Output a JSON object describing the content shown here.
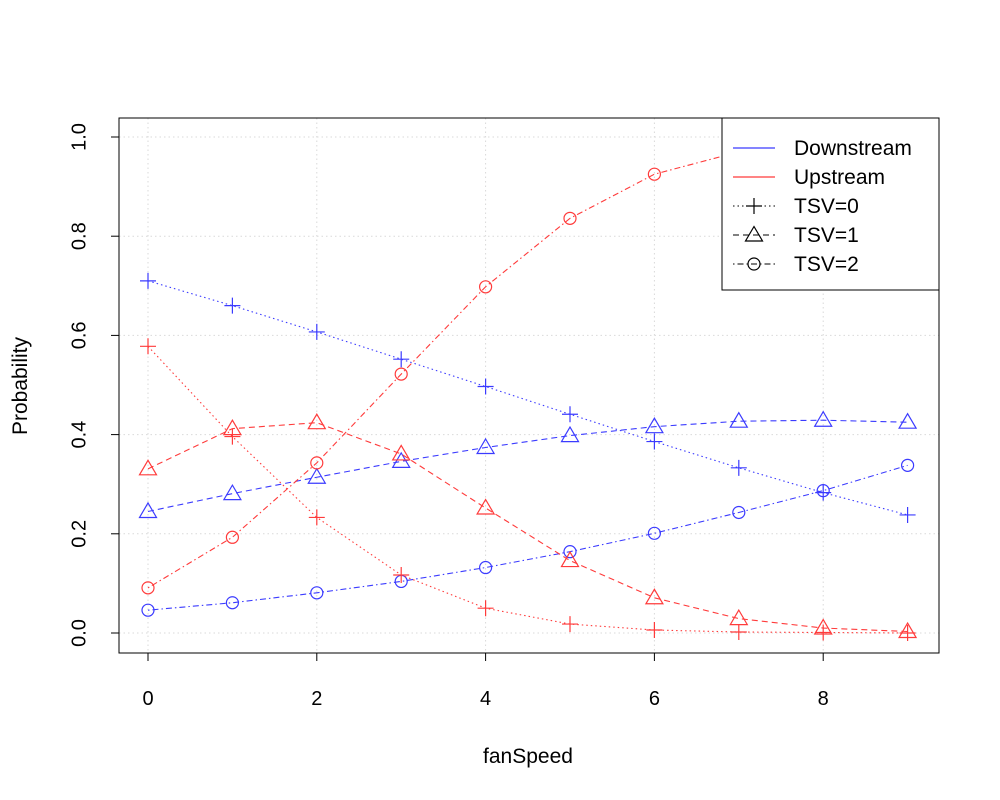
{
  "chart_data": {
    "type": "line",
    "xlabel": "fanSpeed",
    "ylabel": "Probability",
    "xlim": [
      0,
      9
    ],
    "ylim": [
      0,
      1
    ],
    "x_ticks": [
      "0",
      "2",
      "4",
      "6",
      "8"
    ],
    "x_tick_values": [
      0,
      2,
      4,
      6,
      8
    ],
    "y_ticks": [
      "0.0",
      "0.2",
      "0.4",
      "0.6",
      "0.8",
      "1.0"
    ],
    "y_tick_values": [
      0,
      0.2,
      0.4,
      0.6,
      0.8,
      1.0
    ],
    "grid": true,
    "legend_position": "top-right",
    "x": [
      0,
      1,
      2,
      3,
      4,
      5,
      6,
      7,
      8,
      9
    ],
    "colors": {
      "Downstream": "#3b3bff",
      "Upstream": "#ff3b3b"
    },
    "legend": [
      {
        "label": "Downstream",
        "kind": "color",
        "color": "#3b3bff"
      },
      {
        "label": "Upstream",
        "kind": "color",
        "color": "#ff3b3b"
      },
      {
        "label": "TSV=0",
        "kind": "marker",
        "marker": "plus",
        "dash": "dotted"
      },
      {
        "label": "TSV=1",
        "kind": "marker",
        "marker": "triangle",
        "dash": "dashed"
      },
      {
        "label": "TSV=2",
        "kind": "marker",
        "marker": "circle",
        "dash": "dotdash"
      }
    ],
    "series": [
      {
        "group": "Downstream",
        "tsv": "TSV=0",
        "color": "#3b3bff",
        "marker": "plus",
        "dash": "dotted",
        "values": [
          0.71,
          0.66,
          0.607,
          0.552,
          0.497,
          0.441,
          0.386,
          0.333,
          0.283,
          0.238
        ]
      },
      {
        "group": "Downstream",
        "tsv": "TSV=1",
        "color": "#3b3bff",
        "marker": "triangle",
        "dash": "dashed",
        "values": [
          0.245,
          0.281,
          0.314,
          0.346,
          0.374,
          0.398,
          0.416,
          0.427,
          0.429,
          0.425
        ]
      },
      {
        "group": "Downstream",
        "tsv": "TSV=2",
        "color": "#3b3bff",
        "marker": "circle",
        "dash": "dotdash",
        "values": [
          0.046,
          0.061,
          0.081,
          0.104,
          0.132,
          0.164,
          0.201,
          0.243,
          0.287,
          0.338
        ]
      },
      {
        "group": "Upstream",
        "tsv": "TSV=0",
        "color": "#ff3b3b",
        "marker": "plus",
        "dash": "dotted",
        "values": [
          0.578,
          0.396,
          0.233,
          0.117,
          0.05,
          0.018,
          0.006,
          0.002,
          0.001,
          0.0
        ]
      },
      {
        "group": "Upstream",
        "tsv": "TSV=1",
        "color": "#ff3b3b",
        "marker": "triangle",
        "dash": "dashed",
        "values": [
          0.331,
          0.412,
          0.424,
          0.361,
          0.252,
          0.146,
          0.071,
          0.029,
          0.01,
          0.003
        ]
      },
      {
        "group": "Upstream",
        "tsv": "TSV=2",
        "color": "#ff3b3b",
        "marker": "circle",
        "dash": "dotdash",
        "values": [
          0.091,
          0.193,
          0.343,
          0.522,
          0.698,
          0.836,
          0.925,
          0.97,
          0.99,
          0.997
        ]
      }
    ]
  }
}
